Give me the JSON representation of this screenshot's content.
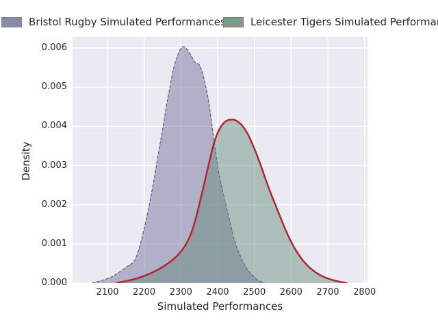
{
  "legend": [
    {
      "label": "Bristol Rugby Simulated Performances",
      "swatch_fill": "#8a8aa8",
      "swatch_border": "#80809c"
    },
    {
      "label": "Leicester Tigers Simulated Performances",
      "swatch_fill": "#7d9b8d",
      "swatch_border": "#bf5a62"
    }
  ],
  "chart_data": {
    "type": "area",
    "subtype": "kde-density",
    "title": "",
    "xlabel": "Simulated Performances",
    "ylabel": "Density",
    "xlim": [
      2005,
      2808
    ],
    "ylim": [
      0,
      0.00628
    ],
    "xticks": [
      2100,
      2200,
      2300,
      2400,
      2500,
      2600,
      2700,
      2800
    ],
    "yticks": [
      0,
      0.001,
      0.002,
      0.003,
      0.004,
      0.005,
      0.006
    ],
    "ytick_labels": [
      "0.000",
      "0.001",
      "0.002",
      "0.003",
      "0.004",
      "0.005",
      "0.006"
    ],
    "grid": true,
    "legend_position": "top-outside",
    "plot_bg": "#eaeaf2",
    "grid_color": "#ffffff",
    "series": [
      {
        "name": "Bristol Rugby Simulated Performances",
        "fill": "rgba(120,118,160,0.5)",
        "line_color": "#484d66",
        "line_width": 1,
        "line_dash": "4,3",
        "peak": {
          "x": 2306,
          "y": 0.0061
        },
        "points": [
          [
            2058,
            0
          ],
          [
            2075,
            4e-05
          ],
          [
            2090,
            8e-05
          ],
          [
            2105,
            0.00013
          ],
          [
            2120,
            0.0002
          ],
          [
            2135,
            0.0003
          ],
          [
            2150,
            0.0004
          ],
          [
            2162,
            0.00048
          ],
          [
            2172,
            0.00053
          ],
          [
            2180,
            0.0007
          ],
          [
            2190,
            0.001
          ],
          [
            2200,
            0.0014
          ],
          [
            2210,
            0.0018
          ],
          [
            2220,
            0.0023
          ],
          [
            2230,
            0.0028
          ],
          [
            2240,
            0.0034
          ],
          [
            2250,
            0.0039
          ],
          [
            2260,
            0.0045
          ],
          [
            2270,
            0.005
          ],
          [
            2280,
            0.0055
          ],
          [
            2290,
            0.0058
          ],
          [
            2300,
            0.006
          ],
          [
            2307,
            0.00605
          ],
          [
            2314,
            0.006
          ],
          [
            2322,
            0.0059
          ],
          [
            2331,
            0.00575
          ],
          [
            2340,
            0.0056
          ],
          [
            2350,
            0.0056
          ],
          [
            2358,
            0.0054
          ],
          [
            2366,
            0.0051
          ],
          [
            2375,
            0.0047
          ],
          [
            2385,
            0.004
          ],
          [
            2395,
            0.0033
          ],
          [
            2405,
            0.0027
          ],
          [
            2415,
            0.0023
          ],
          [
            2425,
            0.0019
          ],
          [
            2435,
            0.0015
          ],
          [
            2445,
            0.0011
          ],
          [
            2455,
            0.00085
          ],
          [
            2465,
            0.00062
          ],
          [
            2475,
            0.00044
          ],
          [
            2485,
            0.0003
          ],
          [
            2495,
            0.0002
          ],
          [
            2505,
            0.0001
          ],
          [
            2515,
            5e-05
          ],
          [
            2528,
            0
          ]
        ]
      },
      {
        "name": "Leicester Tigers Simulated Performances",
        "fill": "rgba(95,138,118,0.45)",
        "line_color": "#b3252e",
        "line_width": 2.5,
        "line_dash": "",
        "peak": {
          "x": 2435,
          "y": 0.00418
        },
        "points": [
          [
            2125,
            0
          ],
          [
            2145,
            4e-05
          ],
          [
            2165,
            8e-05
          ],
          [
            2185,
            0.00013
          ],
          [
            2205,
            0.0002
          ],
          [
            2225,
            0.00028
          ],
          [
            2245,
            0.00038
          ],
          [
            2265,
            0.0005
          ],
          [
            2285,
            0.00065
          ],
          [
            2300,
            0.0008
          ],
          [
            2315,
            0.001
          ],
          [
            2330,
            0.0013
          ],
          [
            2345,
            0.0018
          ],
          [
            2360,
            0.0024
          ],
          [
            2375,
            0.003
          ],
          [
            2390,
            0.0036
          ],
          [
            2405,
            0.00395
          ],
          [
            2420,
            0.00413
          ],
          [
            2435,
            0.00418
          ],
          [
            2450,
            0.00416
          ],
          [
            2465,
            0.00405
          ],
          [
            2480,
            0.00385
          ],
          [
            2495,
            0.00355
          ],
          [
            2510,
            0.0032
          ],
          [
            2525,
            0.0028
          ],
          [
            2540,
            0.0024
          ],
          [
            2555,
            0.00205
          ],
          [
            2570,
            0.0017
          ],
          [
            2585,
            0.00135
          ],
          [
            2600,
            0.00105
          ],
          [
            2615,
            0.0008
          ],
          [
            2630,
            0.0006
          ],
          [
            2645,
            0.00044
          ],
          [
            2660,
            0.00032
          ],
          [
            2675,
            0.00022
          ],
          [
            2690,
            0.00015
          ],
          [
            2705,
            0.0001
          ],
          [
            2720,
            6e-05
          ],
          [
            2735,
            3e-05
          ],
          [
            2752,
            0
          ]
        ]
      }
    ]
  }
}
